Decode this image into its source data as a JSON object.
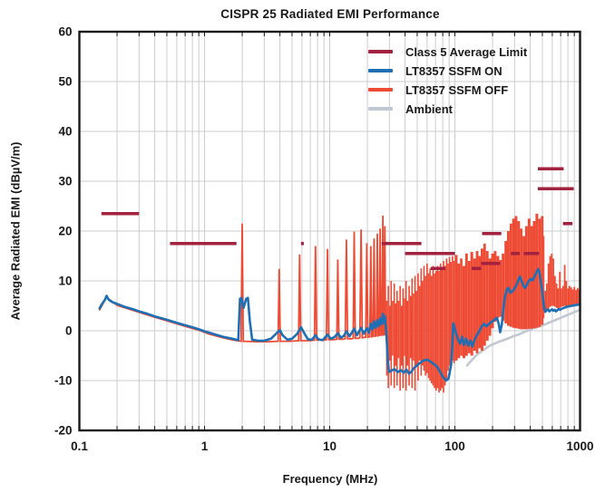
{
  "chart_data": {
    "type": "line",
    "title": "CISPR 25 Radiated EMI Performance",
    "xlabel": "Frequency (MHz)",
    "ylabel": "Average Radiated EMI (dBµV/m)",
    "x_scale": "log",
    "xlim": [
      0.1,
      1000
    ],
    "ylim": [
      -20,
      60
    ],
    "x_ticks": [
      0.1,
      1,
      10,
      100,
      1000
    ],
    "x_tick_labels": [
      "0.1",
      "1",
      "10",
      "100",
      "1000"
    ],
    "y_ticks": [
      60,
      50,
      40,
      30,
      20,
      10,
      0,
      -10,
      -20
    ],
    "grid": true,
    "legend_position": "upper right",
    "colors": {
      "limit": "#A32240",
      "ssfm_on": "#1E6FB4",
      "ssfm_off": "#EE4B35",
      "ambient": "#C2C8D2",
      "grid": "#cccccc",
      "frame": "#191919",
      "text": "#191919"
    },
    "legend": [
      {
        "label": "Class 5 Average Limit",
        "series": "limit"
      },
      {
        "label": "LT8357 SSFM ON",
        "series": "ssfm_on"
      },
      {
        "label": "LT8357 SSFM OFF",
        "series": "ssfm_off"
      },
      {
        "label": "Ambient",
        "series": "ambient"
      }
    ],
    "limit_segments": [
      {
        "f": [
          0.15,
          0.3
        ],
        "level": 23.5
      },
      {
        "f": [
          0.53,
          1.8
        ],
        "level": 17.5
      },
      {
        "f": [
          5.9,
          6.2
        ],
        "level": 17.5
      },
      {
        "f": [
          26,
          54
        ],
        "level": 17.5
      },
      {
        "f": [
          40,
          100
        ],
        "level": 15.5
      },
      {
        "f": [
          64,
          84
        ],
        "level": 12.5
      },
      {
        "f": [
          136,
          162
        ],
        "level": 12.5
      },
      {
        "f": [
          162,
          230
        ],
        "level": 13.5
      },
      {
        "f": [
          165,
          235
        ],
        "level": 19.5
      },
      {
        "f": [
          280,
          330
        ],
        "level": 15.5
      },
      {
        "f": [
          355,
          470
        ],
        "level": 15.5
      },
      {
        "f": [
          460,
          740
        ],
        "level": 32.5
      },
      {
        "f": [
          460,
          890
        ],
        "level": 28.5
      },
      {
        "f": [
          730,
          870
        ],
        "level": 21.5
      }
    ],
    "ssfm_on_points": [
      [
        0.145,
        4.5
      ],
      [
        0.15,
        5.2
      ],
      [
        0.16,
        6.2
      ],
      [
        0.165,
        7
      ],
      [
        0.172,
        6.2
      ],
      [
        0.185,
        5.7
      ],
      [
        0.2,
        5.4
      ],
      [
        0.23,
        4.8
      ],
      [
        0.27,
        4.3
      ],
      [
        0.3,
        3.9
      ],
      [
        0.35,
        3.4
      ],
      [
        0.4,
        2.9
      ],
      [
        0.5,
        2.2
      ],
      [
        0.6,
        1.6
      ],
      [
        0.7,
        1.1
      ],
      [
        0.8,
        0.7
      ],
      [
        0.9,
        0.3
      ],
      [
        1.0,
        -0.1
      ],
      [
        1.2,
        -0.7
      ],
      [
        1.4,
        -1.2
      ],
      [
        1.6,
        -1.5
      ],
      [
        1.8,
        -1.8
      ],
      [
        1.86,
        -1.9
      ],
      [
        1.92,
        6.4
      ],
      [
        1.97,
        6.6
      ],
      [
        2.05,
        4.6
      ],
      [
        2.15,
        6.4
      ],
      [
        2.22,
        6.6
      ],
      [
        2.3,
        2
      ],
      [
        2.4,
        -1.8
      ],
      [
        2.7,
        -2
      ],
      [
        3,
        -2
      ],
      [
        3.4,
        -1.6
      ],
      [
        3.8,
        -0.4
      ],
      [
        4.0,
        0.1
      ],
      [
        4.2,
        -0.9
      ],
      [
        4.6,
        -1.8
      ],
      [
        5.0,
        -1.6
      ],
      [
        5.5,
        -0.6
      ],
      [
        5.9,
        0.7
      ],
      [
        6.3,
        -0.6
      ],
      [
        6.7,
        -1.7
      ],
      [
        7.2,
        -1.8
      ],
      [
        7.7,
        -0.9
      ],
      [
        8.1,
        -1.7
      ],
      [
        8.8,
        -1.9
      ],
      [
        9.6,
        -0.8
      ],
      [
        10.2,
        -1.6
      ],
      [
        10.9,
        -1.3
      ],
      [
        11.6,
        -0.5
      ],
      [
        12.3,
        -1.4
      ],
      [
        13,
        -1
      ],
      [
        13.6,
        -0.1
      ],
      [
        14.4,
        -1.1
      ],
      [
        15.7,
        0.4
      ],
      [
        16.5,
        -0.9
      ],
      [
        17.8,
        0.6
      ],
      [
        18.7,
        -0.6
      ],
      [
        19.8,
        0.5
      ],
      [
        20.6,
        -0.4
      ],
      [
        21.3,
        1.4
      ],
      [
        22,
        0.3
      ],
      [
        22.6,
        1.9
      ],
      [
        23.3,
        0.6
      ],
      [
        24,
        2.1
      ],
      [
        24.7,
        0.9
      ],
      [
        25.3,
        2.5
      ],
      [
        26,
        1.3
      ],
      [
        26.6,
        3.4
      ],
      [
        27.1,
        1.6
      ],
      [
        27.6,
        2.9
      ],
      [
        28.2,
        0.4
      ],
      [
        28.7,
        -3
      ],
      [
        29.2,
        -6.5
      ],
      [
        29.8,
        -8.3
      ],
      [
        31,
        -8
      ],
      [
        33,
        -7.7
      ],
      [
        35,
        -8.3
      ],
      [
        37,
        -7.9
      ],
      [
        39,
        -8.4
      ],
      [
        41,
        -7.8
      ],
      [
        43,
        -8.6
      ],
      [
        45,
        -8.2
      ],
      [
        47,
        -7.5
      ],
      [
        50,
        -6.9
      ],
      [
        53,
        -6.4
      ],
      [
        56,
        -6
      ],
      [
        60,
        -5.8
      ],
      [
        64,
        -6.2
      ],
      [
        68,
        -6.7
      ],
      [
        72,
        -7.2
      ],
      [
        76,
        -8.2
      ],
      [
        80,
        -9.2
      ],
      [
        85,
        -10
      ],
      [
        89,
        -9.6
      ],
      [
        93,
        -7
      ],
      [
        95,
        -4
      ],
      [
        97,
        1.5
      ],
      [
        99,
        0.8
      ],
      [
        102,
        -0.5
      ],
      [
        106,
        -1.8
      ],
      [
        110,
        -2.6
      ],
      [
        114,
        -1.2
      ],
      [
        118,
        -2.9
      ],
      [
        123,
        -1.6
      ],
      [
        128,
        -3
      ],
      [
        133,
        -2
      ],
      [
        138,
        -3.2
      ],
      [
        143,
        -2
      ],
      [
        149,
        -1
      ],
      [
        156,
        -0.2
      ],
      [
        163,
        0.8
      ],
      [
        171,
        1.4
      ],
      [
        179,
        0.9
      ],
      [
        188,
        1.4
      ],
      [
        197,
        1.8
      ],
      [
        207,
        2.2
      ],
      [
        217,
        2.6
      ],
      [
        224,
        1.4
      ],
      [
        230,
        -0.3
      ],
      [
        237,
        1.2
      ],
      [
        244,
        4.5
      ],
      [
        252,
        7
      ],
      [
        260,
        8.3
      ],
      [
        268,
        8.6
      ],
      [
        277,
        7.6
      ],
      [
        287,
        7.9
      ],
      [
        297,
        8.3
      ],
      [
        308,
        9
      ],
      [
        319,
        9.9
      ],
      [
        330,
        10.9
      ],
      [
        341,
        10
      ],
      [
        352,
        9.1
      ],
      [
        364,
        8.6
      ],
      [
        377,
        9.3
      ],
      [
        390,
        10
      ],
      [
        404,
        10.4
      ],
      [
        418,
        10.1
      ],
      [
        433,
        10.9
      ],
      [
        448,
        11.7
      ],
      [
        462,
        12.4
      ],
      [
        472,
        11.9
      ],
      [
        483,
        10.2
      ],
      [
        494,
        8.8
      ],
      [
        505,
        6.5
      ],
      [
        516,
        4.6
      ],
      [
        528,
        3.8
      ],
      [
        541,
        4.1
      ],
      [
        554,
        4.3
      ],
      [
        568,
        3.9
      ],
      [
        582,
        4.1
      ],
      [
        597,
        4.3
      ],
      [
        612,
        4
      ],
      [
        627,
        4.2
      ],
      [
        643,
        3.9
      ],
      [
        659,
        4.1
      ],
      [
        676,
        4.4
      ],
      [
        693,
        4.2
      ],
      [
        710,
        4.4
      ],
      [
        728,
        4.5
      ],
      [
        747,
        4.6
      ],
      [
        766,
        4.7
      ],
      [
        785,
        4.8
      ],
      [
        805,
        4.9
      ],
      [
        826,
        4.9
      ],
      [
        847,
        5
      ],
      [
        868,
        5
      ],
      [
        890,
        5.1
      ],
      [
        913,
        5.1
      ],
      [
        936,
        5.2
      ],
      [
        960,
        5.2
      ],
      [
        984,
        5.3
      ],
      [
        1000,
        5.3
      ]
    ],
    "ssfm_off_line_points": [
      [
        0.145,
        4.2
      ],
      [
        0.165,
        6.7
      ],
      [
        0.2,
        5.1
      ],
      [
        0.3,
        3.7
      ],
      [
        0.4,
        2.7
      ],
      [
        0.5,
        2.0
      ],
      [
        0.7,
        0.9
      ],
      [
        0.9,
        0.1
      ],
      [
        1.1,
        -0.7
      ],
      [
        1.4,
        -1.4
      ],
      [
        1.7,
        -1.9
      ],
      [
        1.96,
        -2.1
      ],
      [
        2.0,
        21.5
      ],
      [
        2.04,
        -2.1
      ],
      [
        2.6,
        -2.2
      ],
      [
        3.2,
        -2.2
      ],
      [
        3.87,
        -2.1
      ],
      [
        3.95,
        12.4
      ],
      [
        4.03,
        -2.1
      ],
      [
        4.8,
        -2.1
      ],
      [
        5.64,
        -2
      ],
      [
        5.75,
        15.3
      ],
      [
        5.87,
        -2
      ],
      [
        6.8,
        -2
      ],
      [
        7.55,
        -1.9
      ],
      [
        7.7,
        17
      ],
      [
        7.86,
        -1.9
      ],
      [
        8.8,
        -1.9
      ],
      [
        9.4,
        -1.8
      ],
      [
        9.6,
        16.4
      ],
      [
        9.8,
        -1.8
      ],
      [
        10.8,
        -1.8
      ],
      [
        11.4,
        -1.7
      ],
      [
        11.6,
        14.3
      ],
      [
        11.85,
        -1.7
      ],
      [
        12.8,
        -1.7
      ],
      [
        13.3,
        -1.6
      ],
      [
        13.6,
        18.3
      ],
      [
        13.9,
        -1.6
      ],
      [
        15,
        -1.6
      ],
      [
        15.4,
        -1.5
      ],
      [
        15.7,
        19.9
      ],
      [
        16,
        -1.5
      ],
      [
        17,
        -1.5
      ],
      [
        17.4,
        -1.4
      ],
      [
        17.8,
        20.3
      ],
      [
        18.2,
        -1.4
      ],
      [
        19.4,
        -1.3
      ],
      [
        19.8,
        17.6
      ],
      [
        20.2,
        -1.3
      ],
      [
        20.9,
        -1.2
      ],
      [
        21.3,
        17
      ],
      [
        21.7,
        -1.2
      ],
      [
        22.2,
        -1.1
      ],
      [
        22.6,
        18.5
      ],
      [
        23,
        -1.1
      ],
      [
        23.6,
        -1
      ],
      [
        24,
        19.5
      ],
      [
        24.4,
        -1
      ],
      [
        24.9,
        -0.9
      ],
      [
        25.3,
        20.5
      ],
      [
        25.7,
        -0.9
      ],
      [
        26.2,
        -0.8
      ],
      [
        26.6,
        23.1
      ],
      [
        27,
        -0.8
      ],
      [
        27.3,
        -0.7
      ],
      [
        27.6,
        21
      ],
      [
        27.9,
        -0.7
      ],
      [
        28.2,
        -0.6
      ]
    ],
    "ssfm_off_band": [
      [
        28.2,
        6,
        -9
      ],
      [
        29,
        9,
        -11.5
      ],
      [
        29.8,
        5,
        -6
      ],
      [
        30.6,
        10,
        -11
      ],
      [
        31.4,
        6,
        -5
      ],
      [
        32.3,
        9.5,
        -11.5
      ],
      [
        33.2,
        5.5,
        -7
      ],
      [
        34.1,
        8,
        -11
      ],
      [
        35,
        6,
        -5.5
      ],
      [
        36,
        9,
        -12
      ],
      [
        37,
        5,
        -7
      ],
      [
        38,
        8.5,
        -11.5
      ],
      [
        39.1,
        6.5,
        -5
      ],
      [
        40.2,
        10,
        -12
      ],
      [
        41.3,
        6,
        -7
      ],
      [
        42.5,
        9,
        -11
      ],
      [
        43.7,
        7,
        -5.5
      ],
      [
        44.9,
        10.5,
        -11.5
      ],
      [
        46.1,
        7.5,
        -6
      ],
      [
        47.4,
        11,
        -12
      ],
      [
        48.7,
        8,
        -7
      ],
      [
        50.1,
        11.5,
        -10
      ],
      [
        51.5,
        9,
        -6
      ],
      [
        53,
        12.5,
        -9
      ],
      [
        54.4,
        10,
        -7
      ],
      [
        56,
        13,
        -8
      ],
      [
        57.5,
        11,
        -9
      ],
      [
        59.1,
        13.5,
        -8.5
      ],
      [
        60.8,
        11.5,
        -9.5
      ],
      [
        62.5,
        12.5,
        -10
      ],
      [
        64.2,
        11,
        -10.5
      ],
      [
        66,
        13,
        -11
      ],
      [
        67.9,
        11.5,
        -11.5
      ],
      [
        69.8,
        12,
        -12
      ],
      [
        71.7,
        13,
        -11.5
      ],
      [
        73.7,
        12,
        -12.4
      ],
      [
        75.8,
        13.5,
        -12
      ],
      [
        77.9,
        12.5,
        -11.5
      ],
      [
        80.1,
        14,
        -12.4
      ],
      [
        82.3,
        13,
        -11
      ],
      [
        84.6,
        14.5,
        -10
      ],
      [
        87,
        13.5,
        -8
      ],
      [
        89.4,
        14.8,
        -7
      ],
      [
        91.9,
        13.8,
        -6.5
      ],
      [
        94.5,
        15,
        -6
      ],
      [
        97.1,
        14,
        -6.5
      ],
      [
        99.8,
        15.2,
        -6
      ],
      [
        105,
        13.5,
        -5.5
      ],
      [
        110,
        14.5,
        -5
      ],
      [
        115,
        13,
        -5.5
      ],
      [
        121,
        15.5,
        -5
      ],
      [
        127,
        14,
        -4.5
      ],
      [
        133,
        15.8,
        -5
      ],
      [
        140,
        14.5,
        -4
      ],
      [
        147,
        16,
        -4.5
      ],
      [
        154,
        15,
        -3.5
      ],
      [
        161,
        16.5,
        -4
      ],
      [
        169,
        17.5,
        -3
      ],
      [
        177,
        16,
        -2
      ],
      [
        186,
        14.5,
        -1
      ],
      [
        195,
        15.5,
        0.5
      ],
      [
        205,
        16,
        1.8
      ],
      [
        215,
        15,
        2.6
      ],
      [
        226,
        14.2,
        2.8
      ],
      [
        237,
        15.5,
        2
      ],
      [
        249,
        18,
        1.5
      ],
      [
        261,
        20,
        1
      ],
      [
        274,
        21.5,
        0.8
      ],
      [
        287,
        22.5,
        0.6
      ],
      [
        301,
        23,
        0.5
      ],
      [
        316,
        22,
        0.4
      ],
      [
        331,
        20.5,
        0.3
      ],
      [
        347,
        19,
        0.3
      ],
      [
        364,
        21,
        0.3
      ],
      [
        382,
        22.5,
        0.4
      ],
      [
        401,
        21,
        0.4
      ],
      [
        420,
        22,
        0.5
      ],
      [
        441,
        23.5,
        0.6
      ],
      [
        463,
        22.5,
        0.8
      ],
      [
        486,
        23,
        1.2
      ],
      [
        510,
        19,
        2.5
      ],
      [
        520,
        8,
        3.8
      ],
      [
        535,
        9.5,
        4.2
      ],
      [
        551,
        13.5,
        4.5
      ],
      [
        568,
        15,
        4.8
      ],
      [
        585,
        15.5,
        5
      ],
      [
        603,
        14.5,
        5
      ],
      [
        621,
        11,
        4.8
      ],
      [
        640,
        9.5,
        4.6
      ],
      [
        659,
        8.5,
        4.5
      ],
      [
        679,
        11.8,
        4.6
      ],
      [
        700,
        8.5,
        4.8
      ],
      [
        721,
        9,
        4.9
      ],
      [
        743,
        13.2,
        5
      ],
      [
        765,
        10,
        4.9
      ],
      [
        788,
        8.5,
        4.8
      ],
      [
        812,
        9,
        4.9
      ],
      [
        837,
        8.7,
        5
      ],
      [
        862,
        8.3,
        5
      ],
      [
        888,
        8.8,
        5.1
      ],
      [
        915,
        8.2,
        5.1
      ],
      [
        943,
        8.6,
        5.2
      ],
      [
        971,
        8.3,
        5.2
      ],
      [
        1000,
        8.8,
        5.3
      ]
    ],
    "ambient_points": [
      [
        125,
        -7
      ],
      [
        132,
        -6.3
      ],
      [
        140,
        -5.6
      ],
      [
        150,
        -4.8
      ],
      [
        162,
        -4.2
      ],
      [
        175,
        -3.6
      ],
      [
        190,
        -3
      ],
      [
        207,
        -2.6
      ],
      [
        225,
        -2.2
      ],
      [
        245,
        -1.9
      ],
      [
        268,
        -1.5
      ],
      [
        292,
        -1.1
      ],
      [
        319,
        -0.8
      ],
      [
        348,
        -0.4
      ],
      [
        380,
        0
      ],
      [
        415,
        0.4
      ],
      [
        453,
        0.7
      ],
      [
        494,
        1
      ],
      [
        539,
        1.4
      ],
      [
        589,
        1.8
      ],
      [
        643,
        2.2
      ],
      [
        702,
        2.6
      ],
      [
        766,
        3
      ],
      [
        836,
        3.4
      ],
      [
        913,
        3.8
      ],
      [
        1000,
        4.2
      ]
    ]
  }
}
